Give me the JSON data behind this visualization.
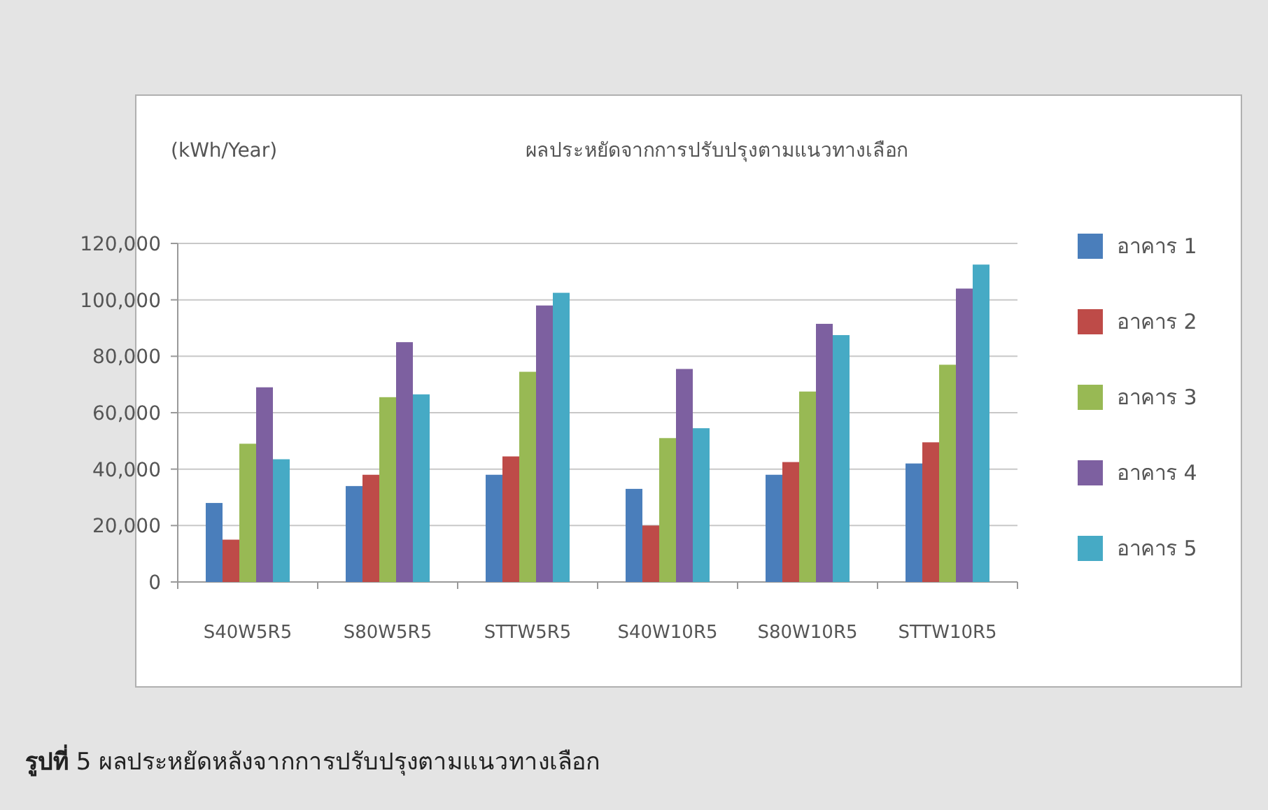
{
  "chart_data": {
    "type": "bar",
    "title": "ผลประหยัดจากการปรับปรุงตามแนวทางเลือก",
    "ylabel": "(kWh/Year)",
    "annotations": [
      "**รูปที่** 5 ผลประหยัดหลังจากการปรับปรุงตามแนวทางเลือก"
    ],
    "categories": [
      "S40W5R5",
      "S80W5R5",
      "STTW5R5",
      "S40W10R5",
      "S80W10R5",
      "STTW10R5"
    ],
    "series": [
      {
        "name": "อาคาร 1",
        "color": "#4a7ebb",
        "values": [
          28000,
          34000,
          38000,
          33000,
          38000,
          42000
        ]
      },
      {
        "name": "อาคาร 2",
        "color": "#be4b48",
        "values": [
          15000,
          38000,
          44500,
          20000,
          42500,
          49500
        ]
      },
      {
        "name": "อาคาร 3",
        "color": "#98b954",
        "values": [
          49000,
          65500,
          74500,
          51000,
          67500,
          77000
        ]
      },
      {
        "name": "อาคาร 4",
        "color": "#7d60a0",
        "values": [
          69000,
          85000,
          98000,
          75500,
          91500,
          104000
        ]
      },
      {
        "name": "อาคาร 5",
        "color": "#46aac5",
        "values": [
          43500,
          66500,
          102500,
          54500,
          87500,
          112500
        ]
      }
    ],
    "ylim": [
      0,
      120000
    ],
    "yticks": [
      0,
      {
        "value": 20000,
        "label": "20,000"
      },
      {
        "value": 40000,
        "label": "40,000"
      },
      {
        "value": 60000,
        "label": "60,000"
      },
      {
        "value": 80000,
        "label": "80,000"
      },
      {
        "value": 100000,
        "label": "100,000"
      },
      {
        "value": 120000,
        "label": "120,000"
      }
    ],
    "grid": "y",
    "legend": "right"
  }
}
